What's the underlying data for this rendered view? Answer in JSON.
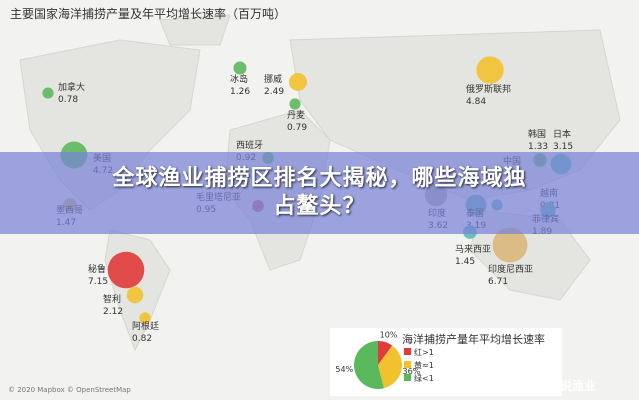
{
  "title": "主要国家海洋捕捞产量及年平均增长速率（百万吨）",
  "countries": [
    {
      "name": "加拿大",
      "value": 0.78,
      "color": "#5cb85c"
    },
    {
      "name": "冰岛",
      "value": 1.26,
      "color": "#5cb85c"
    },
    {
      "name": "挪威",
      "value": 2.49,
      "color": "#f2c12e"
    },
    {
      "name": "丹麦",
      "value": 0.79,
      "color": "#5cb85c"
    },
    {
      "name": "俄罗斯联邦",
      "value": 4.84,
      "color": "#f2c12e"
    },
    {
      "name": "美国",
      "value": 4.72,
      "color": "#5cb85c"
    },
    {
      "name": "西班牙",
      "value": 0.92,
      "color": "#5cb85c"
    },
    {
      "name": "墨西哥",
      "value": 1.47,
      "color": "#d9b77a"
    },
    {
      "name": "毛里塔尼亚",
      "value": 0.95,
      "color": "#c0558a"
    },
    {
      "name": "韩国",
      "value": 1.33,
      "color": "#5cb85c"
    },
    {
      "name": "日本",
      "value": 3.15,
      "color": "#5cb8b8"
    },
    {
      "name": "印度",
      "value": 3.62,
      "color": "#a9a9a0"
    },
    {
      "name": "泰国",
      "value": 3.19,
      "color": "#5cb8b8"
    },
    {
      "name": "越南",
      "value": 0.81,
      "color": "#5cb8b8"
    },
    {
      "name": "菲律宾",
      "value": 1.89,
      "color": "#5cb8b8"
    },
    {
      "name": "马来西亚",
      "value": 1.45,
      "color": "#5cb8b8"
    },
    {
      "name": "印度尼西亚",
      "value": 6.71,
      "color": "#d9b77a"
    },
    {
      "name": "秘鲁",
      "value": 7.15,
      "color": "#e03a3a"
    },
    {
      "name": "智利",
      "value": 2.12,
      "color": "#f2c12e"
    },
    {
      "name": "阿根廷",
      "value": 0.82,
      "color": "#f2c12e"
    }
  ],
  "china": "中国",
  "banner": [
    "全球渔业捕捞区排名大揭秘，哪些海域独",
    "占鳌头？"
  ],
  "legend": {
    "title": "海洋捕捞产量年平均增长速率",
    "slices": [
      {
        "value": 10,
        "label": "10%",
        "color": "#e03a3a"
      },
      {
        "value": 36,
        "label": "36%",
        "color": "#f2c12e"
      },
      {
        "value": 54,
        "label": "54%",
        "color": "#5cb85c"
      }
    ],
    "items": [
      "红>1",
      "黄≈1",
      "绿<1"
    ]
  },
  "credit": "© 2020 Mapbox © OpenStreetMap",
  "watermark": "搜狐号@数说渔业"
}
